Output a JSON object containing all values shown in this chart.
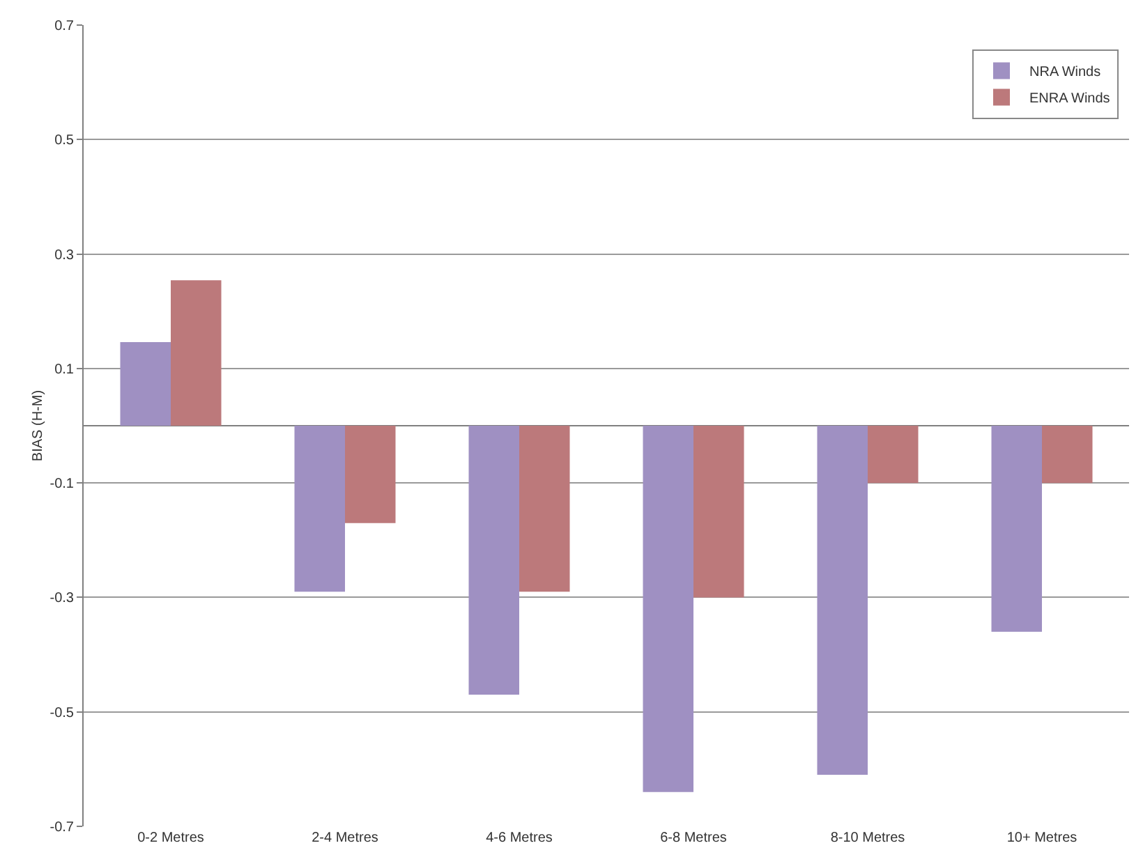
{
  "chart_data": {
    "type": "bar",
    "ylabel": "BIAS (H-M)",
    "categories": [
      "0-2 Metres",
      "2-4 Metres",
      "4-6 Metres",
      "6-8 Metres",
      "8-10 Metres",
      "10+ Metres"
    ],
    "series": [
      {
        "name": "NRA Winds",
        "color": "#9f90c2",
        "values": [
          0.146,
          -0.29,
          -0.47,
          -0.64,
          -0.61,
          -0.36
        ]
      },
      {
        "name": "ENRA Winds",
        "color": "#bc797b",
        "values": [
          0.254,
          -0.17,
          -0.29,
          -0.3,
          -0.1,
          -0.1
        ]
      }
    ],
    "ylim": [
      -0.7,
      0.7
    ],
    "yticks": [
      -0.7,
      -0.5,
      -0.3,
      -0.1,
      0.1,
      0.3,
      0.5,
      0.7
    ],
    "grid": "y",
    "legend": "top right"
  }
}
